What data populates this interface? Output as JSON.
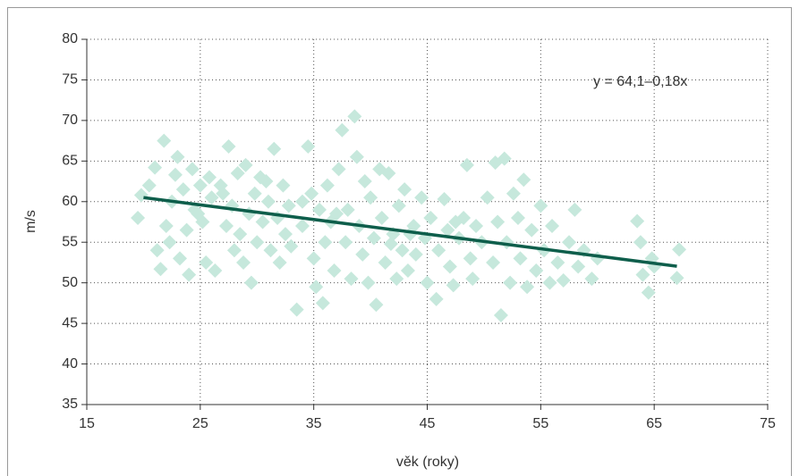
{
  "chart_data": {
    "type": "scatter",
    "xlabel": "věk (roky)",
    "ylabel": "m/s",
    "annotation": "y = 64,1–0,18x",
    "xlim": [
      15,
      75
    ],
    "xticks": [
      15,
      25,
      35,
      45,
      55,
      65,
      75
    ],
    "ylim": [
      35,
      80
    ],
    "yticks": [
      35,
      40,
      45,
      50,
      55,
      60,
      65,
      70,
      75,
      80
    ],
    "grid": true,
    "color": "#c6e8dc",
    "x": [
      19.5,
      19.8,
      20.5,
      21,
      21.2,
      21.5,
      21.8,
      22,
      22.3,
      22.5,
      22.8,
      23,
      23.2,
      23.5,
      23.8,
      24,
      24.3,
      24.5,
      25,
      25.2,
      25.5,
      25.8,
      26,
      26.3,
      26.8,
      27.3,
      27.5,
      27.8,
      28,
      28.3,
      28.5,
      28.8,
      29,
      29.3,
      29.5,
      29.8,
      30,
      30.3,
      30.5,
      31,
      31.2,
      31.5,
      31.8,
      32,
      32.3,
      32.5,
      32.8,
      33,
      33.5,
      34,
      34.5,
      34.8,
      35,
      35.2,
      35.5,
      35.8,
      36,
      36.2,
      36.5,
      36.8,
      37.2,
      37.5,
      37.8,
      38,
      38.3,
      38.6,
      38.8,
      39,
      39.3,
      39.5,
      39.8,
      40,
      40.3,
      40.5,
      40.8,
      41,
      41.3,
      41.6,
      42,
      42.3,
      42.5,
      42.8,
      43,
      43.3,
      43.8,
      44,
      44.5,
      44.8,
      45,
      45.3,
      45.8,
      46,
      46.5,
      46.8,
      47,
      47.3,
      47.8,
      48.2,
      48.5,
      48.8,
      49,
      49.3,
      49.8,
      50.3,
      50.8,
      51,
      51.2,
      51.5,
      51.8,
      52,
      52.3,
      52.6,
      53,
      53.2,
      53.5,
      53.8,
      54.2,
      54.6,
      55,
      55.3,
      55.8,
      56,
      56.5,
      57,
      57.5,
      58,
      58.3,
      58.8,
      59.5,
      60,
      63.5,
      63.8,
      64,
      64.5,
      64.8,
      67,
      67.2,
      65,
      43.5,
      37,
      30.8,
      27,
      24.8,
      34,
      41.8,
      47.5
    ],
    "values": [
      58,
      60.8,
      62,
      64.2,
      54,
      51.7,
      67.5,
      57,
      55,
      60,
      63.3,
      65.5,
      53,
      61.5,
      56.5,
      51,
      64,
      59,
      62,
      57.5,
      52.5,
      63,
      60.5,
      51.5,
      62,
      57,
      66.8,
      59.5,
      54,
      63.5,
      56,
      52.5,
      64.5,
      58.5,
      50,
      61,
      55,
      63,
      57.5,
      60,
      54,
      66.5,
      58,
      52.5,
      62,
      56,
      59.5,
      54.5,
      46.7,
      57,
      66.8,
      61,
      53,
      49.5,
      59,
      47.5,
      55,
      62,
      57.5,
      51.5,
      64,
      68.8,
      55,
      59,
      50.5,
      70.5,
      65.5,
      57,
      53.5,
      62.5,
      50,
      60.5,
      55.5,
      47.3,
      64,
      58,
      52.5,
      63.5,
      56,
      50.5,
      59.5,
      54,
      61.5,
      51.5,
      57,
      53.5,
      60.5,
      55.5,
      50,
      58,
      48,
      54,
      60.3,
      56.5,
      52,
      49.7,
      55.5,
      58,
      64.5,
      53,
      50.5,
      57,
      55,
      60.5,
      52.5,
      64.8,
      57.5,
      46,
      65.3,
      55,
      50,
      61,
      58,
      53,
      62.7,
      49.5,
      56.5,
      51.5,
      59.5,
      54,
      50,
      57,
      52.5,
      50.3,
      55,
      59,
      52,
      54,
      50.5,
      53,
      57.6,
      55,
      51,
      48.8,
      53,
      50.6,
      54.1,
      52,
      56,
      58.5,
      62.5,
      61,
      58.5,
      60,
      54.8,
      57.5
    ],
    "trend": {
      "color": "#0e5e4b",
      "x": [
        20,
        67
      ],
      "values": [
        60.5,
        52.04
      ]
    }
  }
}
